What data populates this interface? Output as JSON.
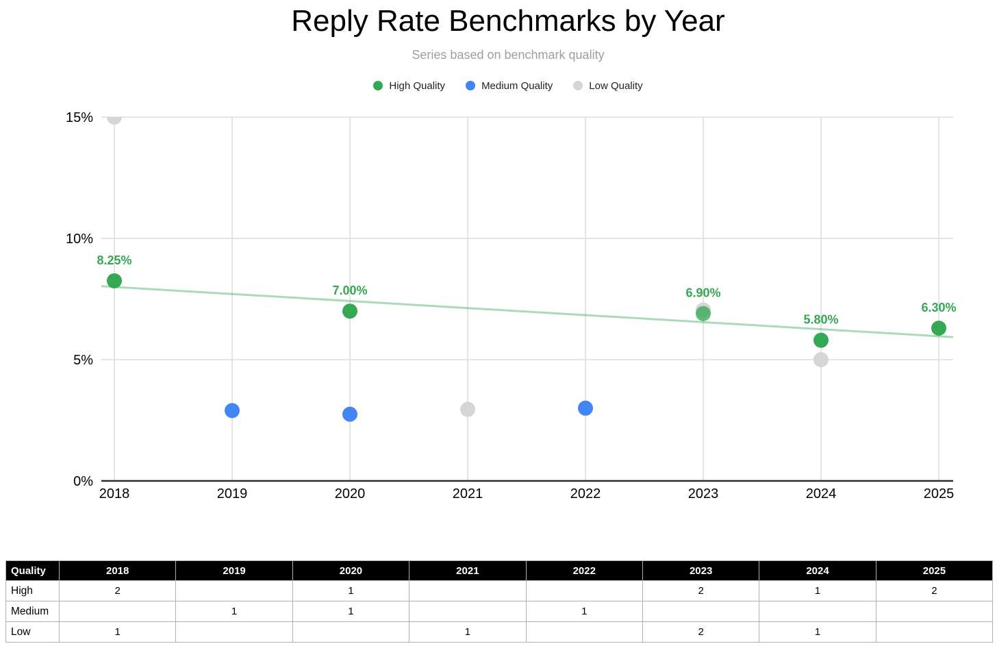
{
  "header": {
    "title": "Reply Rate Benchmarks by Year",
    "subtitle": "Series based on benchmark quality"
  },
  "legend": {
    "position": "top-center",
    "items": [
      {
        "label": "High Quality",
        "color": "#34a853"
      },
      {
        "label": "Medium Quality",
        "color": "#4285f4"
      },
      {
        "label": "Low Quality",
        "color": "#d5d5d5"
      }
    ]
  },
  "chart_data": {
    "type": "scatter",
    "title": "Reply Rate Benchmarks by Year",
    "subtitle": "Series based on benchmark quality",
    "xlabel": "",
    "ylabel": "",
    "x_ticks": [
      "2018",
      "2019",
      "2020",
      "2021",
      "2022",
      "2023",
      "2024",
      "2025"
    ],
    "y_ticks": [
      {
        "value": 0,
        "label": "0%"
      },
      {
        "value": 5,
        "label": "5%"
      },
      {
        "value": 10,
        "label": "10%"
      },
      {
        "value": 15,
        "label": "15%"
      }
    ],
    "ylim": [
      0,
      15
    ],
    "grid": true,
    "grid_color": "#dcdcdc",
    "axis_color": "#2e2e2e",
    "legend_position": "top",
    "series": [
      {
        "name": "Low Quality",
        "color": "#d5d5d5",
        "points": [
          {
            "year": "2018",
            "value": 15.0
          },
          {
            "year": "2021",
            "value": 2.95
          },
          {
            "year": "2023",
            "value": 7.05
          },
          {
            "year": "2024",
            "value": 5.0
          }
        ]
      },
      {
        "name": "Medium Quality",
        "color": "#4285f4",
        "points": [
          {
            "year": "2019",
            "value": 2.9
          },
          {
            "year": "2020",
            "value": 2.75
          },
          {
            "year": "2022",
            "value": 3.0
          }
        ]
      },
      {
        "name": "High Quality",
        "color": "#34a853",
        "points": [
          {
            "year": "2018",
            "value": 8.25,
            "label": "8.25%"
          },
          {
            "year": "2020",
            "value": 7.0,
            "label": "7.00%"
          },
          {
            "year": "2023",
            "value": 6.9,
            "label": "6.90%",
            "opacity": 0.78
          },
          {
            "year": "2024",
            "value": 5.8,
            "label": "5.80%"
          },
          {
            "year": "2025",
            "value": 6.3,
            "label": "6.30%"
          }
        ]
      }
    ],
    "trendline": {
      "series": "High Quality",
      "color": "#34a853",
      "opacity": 0.42,
      "start_value": 8.03,
      "end_value": 5.93
    }
  },
  "table": {
    "columns": [
      "Quality",
      "2018",
      "2019",
      "2020",
      "2021",
      "2022",
      "2023",
      "2024",
      "2025"
    ],
    "rows": [
      {
        "label": "High",
        "values": [
          "2",
          "",
          "1",
          "",
          "",
          "2",
          "1",
          "2"
        ]
      },
      {
        "label": "Medium",
        "values": [
          "",
          "1",
          "1",
          "",
          "1",
          "",
          "",
          ""
        ]
      },
      {
        "label": "Low",
        "values": [
          "1",
          "",
          "",
          "1",
          "",
          "2",
          "1",
          ""
        ]
      }
    ]
  }
}
